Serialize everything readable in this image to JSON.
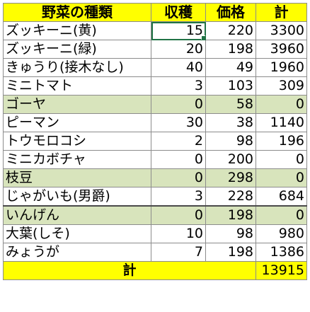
{
  "headers": {
    "name": "野菜の種類",
    "qty": "収穫",
    "price": "価格",
    "total": "計"
  },
  "rows": [
    {
      "name": "ズッキーニ(黄)",
      "qty": "15",
      "price": "220",
      "total": "3300",
      "highlight": false
    },
    {
      "name": "ズッキーニ(緑)",
      "qty": "20",
      "price": "198",
      "total": "3960",
      "highlight": false
    },
    {
      "name": "きゅうり(接木なし)",
      "qty": "40",
      "price": "49",
      "total": "1960",
      "highlight": false
    },
    {
      "name": "ミニトマト",
      "qty": "3",
      "price": "103",
      "total": "309",
      "highlight": false
    },
    {
      "name": "ゴーヤ",
      "qty": "0",
      "price": "58",
      "total": "0",
      "highlight": true
    },
    {
      "name": "ピーマン",
      "qty": "30",
      "price": "38",
      "total": "1140",
      "highlight": false
    },
    {
      "name": "トウモロコシ",
      "qty": "2",
      "price": "98",
      "total": "196",
      "highlight": false
    },
    {
      "name": "ミニカボチャ",
      "qty": "0",
      "price": "200",
      "total": "0",
      "highlight": false
    },
    {
      "name": "枝豆",
      "qty": "0",
      "price": "298",
      "total": "0",
      "highlight": true
    },
    {
      "name": "じゃがいも(男爵)",
      "qty": "3",
      "price": "228",
      "total": "684",
      "highlight": false
    },
    {
      "name": "いんげん",
      "qty": "0",
      "price": "198",
      "total": "0",
      "highlight": true
    },
    {
      "name": "大葉(しそ)",
      "qty": "10",
      "price": "98",
      "total": "980",
      "highlight": false
    },
    {
      "name": "みょうが",
      "qty": "7",
      "price": "198",
      "total": "1386",
      "highlight": false
    }
  ],
  "total_row": {
    "label": "計",
    "sum": "13915"
  },
  "colors": {
    "header_bg": "#ffff00",
    "highlight_row_bg": "#d8e4bc",
    "selection_border": "#217346"
  }
}
